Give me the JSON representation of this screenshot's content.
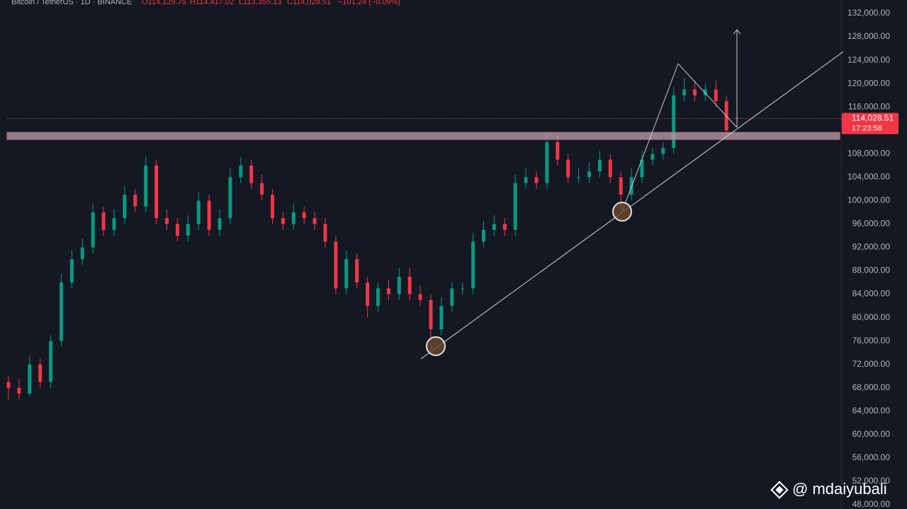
{
  "chart_data": {
    "type": "candlestick",
    "header": {
      "symbol": "Bitcoin / TetherUS · 1D · BINANCE",
      "open": "O114,129.75",
      "high": "H114,417.02",
      "low": "L113,355.13",
      "close": "C114,028.51",
      "change": "−101.24 (−0.09%)"
    },
    "price_label": "114,028.51",
    "countdown": "17:23:56",
    "watermark": "@ mdaiyubali",
    "up_color": "#089981",
    "down_color": "#f23645",
    "ylim": [
      48000,
      132000
    ],
    "yticks": [
      {
        "value": 48000,
        "label": "48,000.00"
      },
      {
        "value": 52000,
        "label": "52,000.00"
      },
      {
        "value": 56000,
        "label": "56,000.00"
      },
      {
        "value": 60000,
        "label": "60,000.00"
      },
      {
        "value": 64000,
        "label": "64,000.00"
      },
      {
        "value": 68000,
        "label": "68,000.00"
      },
      {
        "value": 72000,
        "label": "72,000.00"
      },
      {
        "value": 76000,
        "label": "76,000.00"
      },
      {
        "value": 80000,
        "label": "80,000.00"
      },
      {
        "value": 84000,
        "label": "84,000.00"
      },
      {
        "value": 88000,
        "label": "88,000.00"
      },
      {
        "value": 92000,
        "label": "92,000.00"
      },
      {
        "value": 96000,
        "label": "96,000.00"
      },
      {
        "value": 100000,
        "label": "100,000.00"
      },
      {
        "value": 104000,
        "label": "104,000.00"
      },
      {
        "value": 108000,
        "label": "108,000.00"
      },
      {
        "value": 112000,
        "label": "112,000.00"
      },
      {
        "value": 116000,
        "label": "116,000.00"
      },
      {
        "value": 120000,
        "label": "120,000.00"
      },
      {
        "value": 124000,
        "label": "124,000.00"
      },
      {
        "value": 128000,
        "label": "128,000.00"
      },
      {
        "value": 132000,
        "label": "132,000.00"
      }
    ],
    "open": [
      69000,
      68000,
      67000,
      72000,
      69000,
      76000,
      86000,
      90000,
      92000,
      98000,
      95000,
      97000,
      101000,
      99000,
      106000,
      97000,
      96000,
      94000,
      96000,
      100000,
      95000,
      97000,
      104000,
      106000,
      103000,
      101000,
      97000,
      96000,
      98000,
      97000,
      96000,
      93000,
      85000,
      90000,
      86000,
      82000,
      85000,
      84000,
      87000,
      84000,
      83000,
      78000,
      82000,
      85000,
      85000,
      93000,
      95000,
      96000,
      95000,
      103000,
      104000,
      103000,
      110000,
      107000,
      104000,
      104000,
      105000,
      107000,
      104000,
      101000,
      104000,
      107000,
      108000,
      109000,
      118000,
      119000,
      118000,
      119000,
      117000,
      114129.75
    ],
    "high": [
      70000,
      69500,
      73500,
      73000,
      77000,
      87500,
      91500,
      93500,
      99500,
      99000,
      98500,
      102500,
      102000,
      107500,
      107000,
      98500,
      97000,
      97500,
      101500,
      101000,
      98500,
      105500,
      107500,
      107000,
      104500,
      102000,
      98000,
      99500,
      99000,
      98000,
      97000,
      94000,
      91500,
      91000,
      87000,
      86000,
      86500,
      88500,
      88500,
      85500,
      84000,
      83500,
      86000,
      86000,
      94500,
      96500,
      97500,
      97000,
      104500,
      105500,
      105000,
      111500,
      111000,
      108000,
      105500,
      106500,
      108500,
      108000,
      105000,
      105500,
      108500,
      109000,
      110000,
      119500,
      121000,
      120500,
      120000,
      120500,
      118000,
      114417.02
    ],
    "low": [
      66000,
      66000,
      66500,
      68000,
      68000,
      75000,
      85000,
      89000,
      91000,
      94000,
      94000,
      96000,
      98000,
      98000,
      96000,
      95000,
      93000,
      93000,
      95000,
      94000,
      94000,
      96000,
      103000,
      102000,
      100000,
      96000,
      95000,
      95000,
      96000,
      95000,
      92000,
      84000,
      84000,
      85000,
      80000,
      81000,
      83000,
      83000,
      83000,
      82000,
      74500,
      77000,
      81000,
      84000,
      84000,
      92000,
      94000,
      94000,
      94000,
      102000,
      102000,
      102000,
      106000,
      103000,
      103000,
      103000,
      104000,
      103000,
      98500,
      100000,
      103000,
      106000,
      107000,
      108000,
      117000,
      117000,
      117000,
      116000,
      111000,
      113355.13
    ],
    "close": [
      68000,
      67000,
      72000,
      69000,
      76000,
      86000,
      90000,
      92000,
      98000,
      95000,
      97000,
      101000,
      99000,
      106000,
      97000,
      96000,
      94000,
      96000,
      100000,
      95000,
      97000,
      104000,
      106000,
      103000,
      101000,
      97000,
      96000,
      98000,
      97000,
      96000,
      93000,
      85000,
      90000,
      86000,
      82000,
      85000,
      84000,
      87000,
      84000,
      83000,
      78000,
      82000,
      85000,
      85000,
      93000,
      95000,
      96000,
      95000,
      103000,
      104000,
      103000,
      110000,
      107000,
      104000,
      104000,
      105000,
      107000,
      104000,
      101000,
      104000,
      107000,
      108000,
      109000,
      118000,
      119000,
      118000,
      119000,
      117000,
      112000,
      114028.51
    ]
  }
}
